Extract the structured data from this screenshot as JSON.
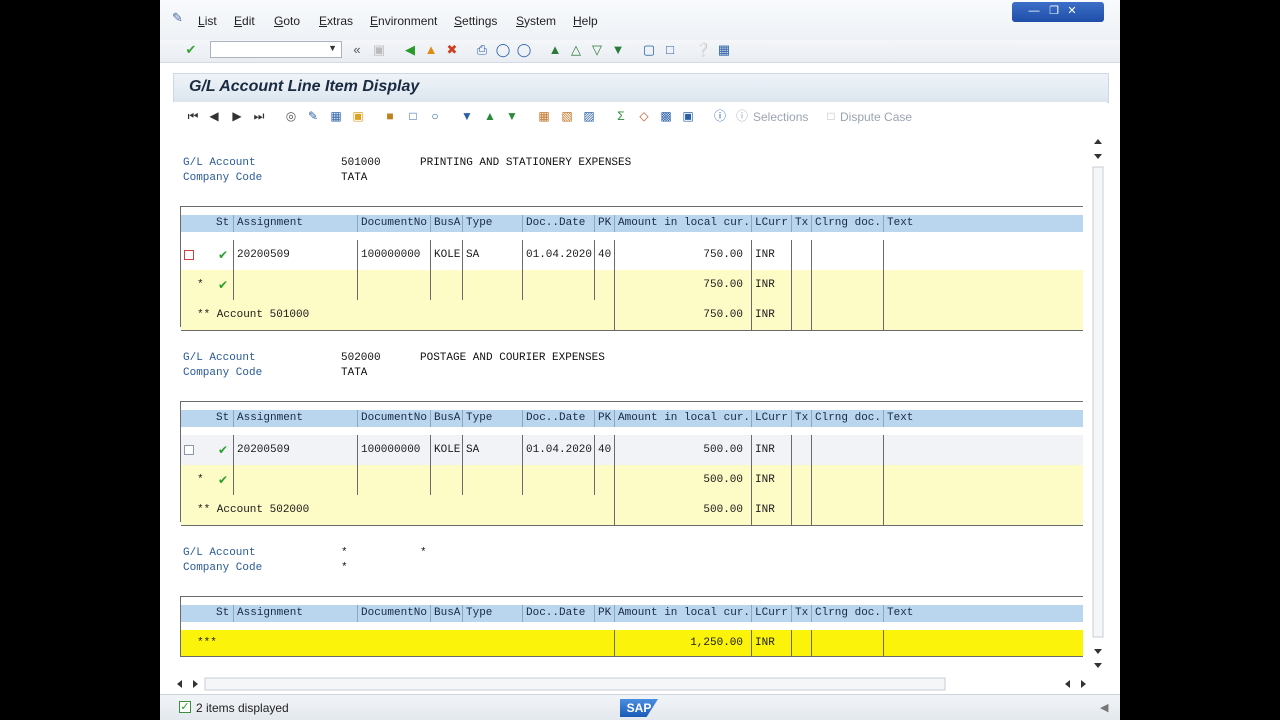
{
  "menu": [
    {
      "label": "List",
      "u": "L",
      "rest": "ist"
    },
    {
      "label": "Edit",
      "u": "E",
      "rest": "dit"
    },
    {
      "label": "Goto",
      "u": "G",
      "rest": "oto"
    },
    {
      "label": "Extras",
      "u": "E",
      "rest": "xtras"
    },
    {
      "label": "Environment",
      "u": "E",
      "rest": "nvironment"
    },
    {
      "label": "Settings",
      "u": "S",
      "rest": "ettings"
    },
    {
      "label": "System",
      "u": "S",
      "rest": "ystem"
    },
    {
      "label": "Help",
      "u": "H",
      "rest": "elp"
    }
  ],
  "page_title": "G/L Account Line Item Display",
  "app_toolbar": {
    "selections_label": "Selections",
    "dispute_label": "Dispute Case"
  },
  "labels": {
    "gl_account": "G/L Account",
    "company_code": "Company Code"
  },
  "columns": [
    "St",
    "Assignment",
    "DocumentNo",
    "BusA",
    "Type",
    "Doc..Date",
    "PK",
    "Amount in local cur.",
    "LCurr",
    "Tx",
    "Clrng doc.",
    "Text"
  ],
  "accounts": [
    {
      "gl_account": "501000",
      "description": "PRINTING AND STATIONERY EXPENSES",
      "company_code": "TATA",
      "item": {
        "assignment": "20200509",
        "document_no": "100000000",
        "bus_area": "KOLE",
        "type": "SA",
        "doc_date": "01.04.2020",
        "pk": "40",
        "amount": "750.00",
        "currency": "INR"
      },
      "subtotal_marker": "*",
      "subtotal_amount": "750.00",
      "subtotal_currency": "INR",
      "account_total_label": "** Account 501000",
      "account_total_amount": "750.00",
      "account_total_currency": "INR"
    },
    {
      "gl_account": "502000",
      "description": "POSTAGE AND COURIER EXPENSES",
      "company_code": "TATA",
      "item": {
        "assignment": "20200509",
        "document_no": "100000000",
        "bus_area": "KOLE",
        "type": "SA",
        "doc_date": "01.04.2020",
        "pk": "40",
        "amount": "500.00",
        "currency": "INR"
      },
      "subtotal_marker": "*",
      "subtotal_amount": "500.00",
      "subtotal_currency": "INR",
      "account_total_label": "** Account 502000",
      "account_total_amount": "500.00",
      "account_total_currency": "INR"
    }
  ],
  "grand": {
    "gl_account": "*",
    "gl_desc": "*",
    "company_code": "*",
    "marker": "***",
    "amount": "1,250.00",
    "currency": "INR"
  },
  "status": {
    "message": "2 items displayed"
  },
  "sap_logo": "SAP"
}
